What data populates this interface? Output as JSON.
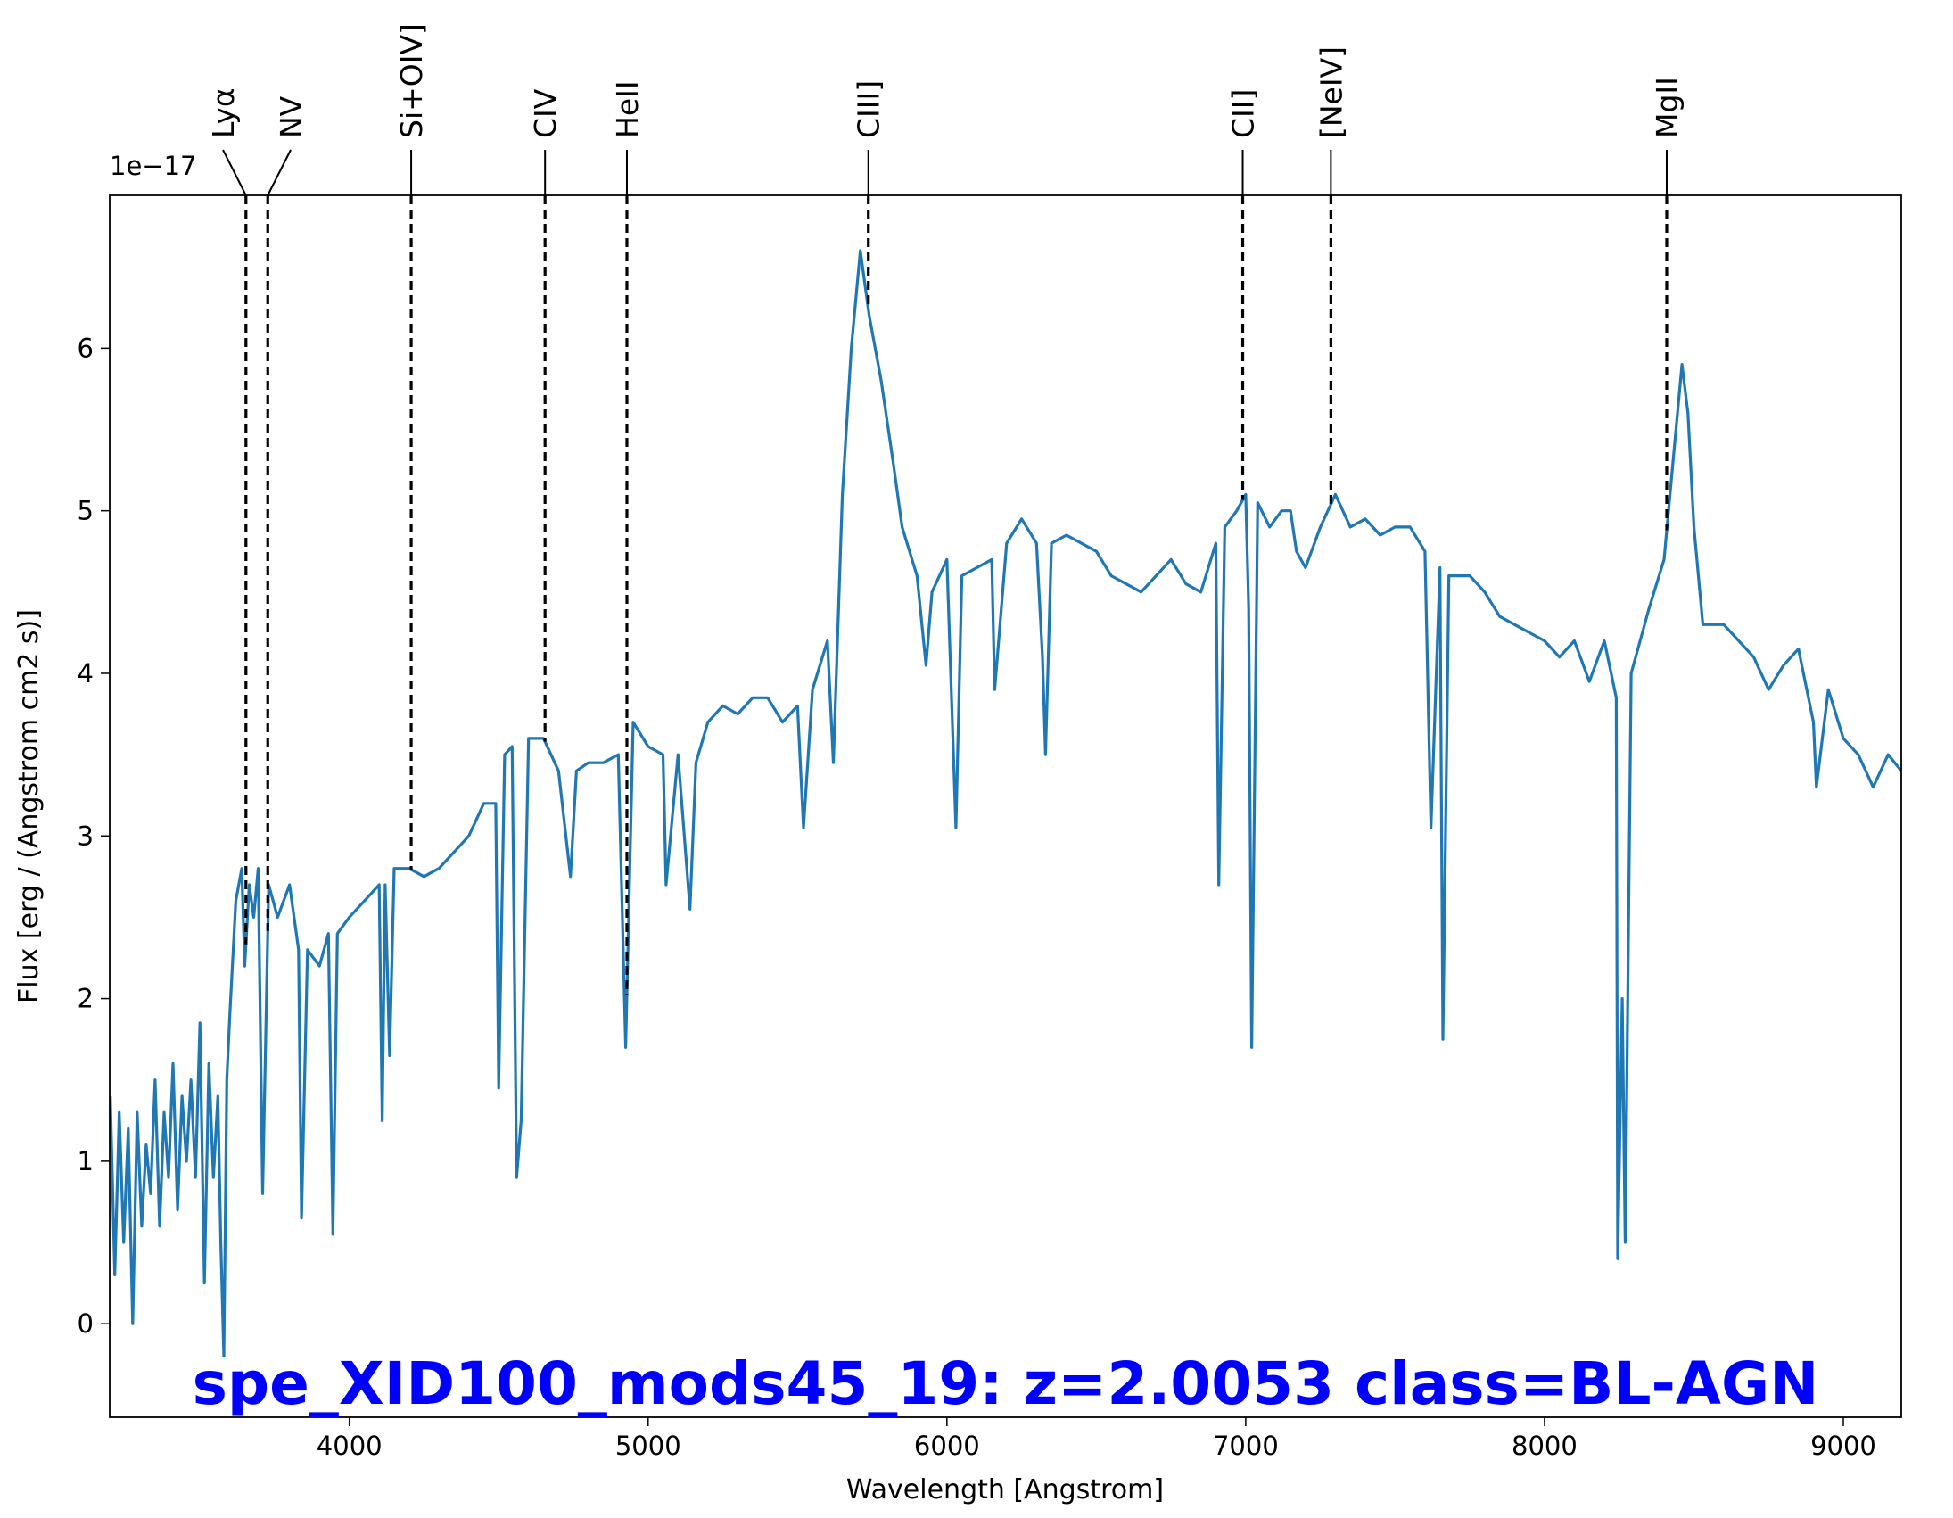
{
  "chart_data": {
    "type": "line",
    "title": "spe_XID100_mods45_19: z=2.0053 class=BL-AGN",
    "x_label": "Wavelength [Angstrom]",
    "y_label": "Flux [erg / (Angstrom cm2 s)]",
    "y_offset_label": "1e−17",
    "xlim": [
      3198,
      9194
    ],
    "ylim": [
      -0.575,
      6.94
    ],
    "xticks": [
      4000,
      5000,
      6000,
      7000,
      8000,
      9000
    ],
    "yticks": [
      0,
      1,
      2,
      3,
      4,
      5,
      6
    ],
    "grid": false,
    "lines": [
      {
        "label": "Lyα",
        "wavelength": 3654
      },
      {
        "label": "NV",
        "wavelength": 3727
      },
      {
        "label": "Si+OIV]",
        "wavelength": 4207
      },
      {
        "label": "CIV",
        "wavelength": 4655
      },
      {
        "label": "HeII",
        "wavelength": 4929
      },
      {
        "label": "CIII]",
        "wavelength": 5737
      },
      {
        "label": "CII]",
        "wavelength": 6990
      },
      {
        "label": "[NeIV]",
        "wavelength": 7285
      },
      {
        "label": "MgII",
        "wavelength": 8409
      }
    ],
    "series": [
      {
        "color": "#1f77b4",
        "x": [
          3200,
          3215,
          3230,
          3245,
          3260,
          3275,
          3290,
          3305,
          3320,
          3335,
          3350,
          3365,
          3380,
          3395,
          3410,
          3425,
          3440,
          3455,
          3470,
          3485,
          3500,
          3515,
          3530,
          3545,
          3560,
          3570,
          3580,
          3590,
          3600,
          3620,
          3640,
          3650,
          3665,
          3680,
          3695,
          3710,
          3730,
          3760,
          3800,
          3830,
          3840,
          3860,
          3900,
          3930,
          3945,
          3960,
          4000,
          4050,
          4100,
          4110,
          4120,
          4135,
          4150,
          4200,
          4250,
          4300,
          4350,
          4400,
          4450,
          4490,
          4500,
          4520,
          4545,
          4560,
          4575,
          4600,
          4650,
          4700,
          4740,
          4760,
          4800,
          4850,
          4900,
          4925,
          4950,
          5000,
          5050,
          5060,
          5100,
          5140,
          5160,
          5200,
          5250,
          5300,
          5350,
          5400,
          5450,
          5500,
          5520,
          5550,
          5600,
          5620,
          5650,
          5680,
          5710,
          5740,
          5780,
          5820,
          5850,
          5900,
          5930,
          5950,
          6000,
          6030,
          6050,
          6100,
          6150,
          6160,
          6200,
          6250,
          6300,
          6320,
          6330,
          6350,
          6400,
          6500,
          6550,
          6600,
          6650,
          6700,
          6750,
          6800,
          6850,
          6900,
          6910,
          6930,
          6970,
          7000,
          7010,
          7020,
          7040,
          7080,
          7120,
          7150,
          7170,
          7200,
          7250,
          7300,
          7350,
          7400,
          7450,
          7500,
          7550,
          7600,
          7620,
          7650,
          7660,
          7680,
          7750,
          7800,
          7850,
          7900,
          8000,
          8050,
          8100,
          8150,
          8200,
          8240,
          8245,
          8260,
          8270,
          8290,
          8350,
          8400,
          8430,
          8460,
          8480,
          8500,
          8530,
          8600,
          8650,
          8700,
          8750,
          8800,
          8850,
          8900,
          8910,
          8950,
          9000,
          9050,
          9100,
          9150,
          9194
        ],
        "values": [
          1.4,
          0.3,
          1.3,
          0.5,
          1.2,
          0.0,
          1.3,
          0.6,
          1.1,
          0.8,
          1.5,
          0.6,
          1.3,
          0.9,
          1.6,
          0.7,
          1.4,
          1.0,
          1.5,
          0.9,
          1.85,
          0.25,
          1.6,
          0.9,
          1.4,
          0.5,
          -0.2,
          1.5,
          1.9,
          2.6,
          2.8,
          2.2,
          2.7,
          2.5,
          2.8,
          0.8,
          2.7,
          2.5,
          2.7,
          2.3,
          0.65,
          2.3,
          2.2,
          2.4,
          0.55,
          2.4,
          2.5,
          2.6,
          2.7,
          1.25,
          2.7,
          1.65,
          2.8,
          2.8,
          2.75,
          2.8,
          2.9,
          3.0,
          3.2,
          3.2,
          1.45,
          3.5,
          3.55,
          0.9,
          1.25,
          3.6,
          3.6,
          3.4,
          2.75,
          3.4,
          3.45,
          3.45,
          3.5,
          1.7,
          3.7,
          3.55,
          3.5,
          2.7,
          3.5,
          2.55,
          3.45,
          3.7,
          3.8,
          3.75,
          3.85,
          3.85,
          3.7,
          3.8,
          3.05,
          3.9,
          4.2,
          3.45,
          5.1,
          6.0,
          6.6,
          6.2,
          5.8,
          5.3,
          4.9,
          4.6,
          4.05,
          4.5,
          4.7,
          3.05,
          4.6,
          4.65,
          4.7,
          3.9,
          4.8,
          4.95,
          4.8,
          4.1,
          3.5,
          4.8,
          4.85,
          4.75,
          4.6,
          4.55,
          4.5,
          4.6,
          4.7,
          4.55,
          4.5,
          4.8,
          2.7,
          4.9,
          5.0,
          5.1,
          4.4,
          1.7,
          5.05,
          4.9,
          5.0,
          5.0,
          4.75,
          4.65,
          4.9,
          5.1,
          4.9,
          4.95,
          4.85,
          4.9,
          4.9,
          4.75,
          3.05,
          4.65,
          1.75,
          4.6,
          4.6,
          4.5,
          4.35,
          4.3,
          4.2,
          4.1,
          4.2,
          3.95,
          4.2,
          3.85,
          0.4,
          2.0,
          0.5,
          4.0,
          4.4,
          4.7,
          5.3,
          5.9,
          5.6,
          4.9,
          4.3,
          4.3,
          4.2,
          4.1,
          3.9,
          4.05,
          4.15,
          3.7,
          3.3,
          3.9,
          3.6,
          3.5,
          3.3,
          3.5,
          3.4
        ]
      }
    ]
  }
}
